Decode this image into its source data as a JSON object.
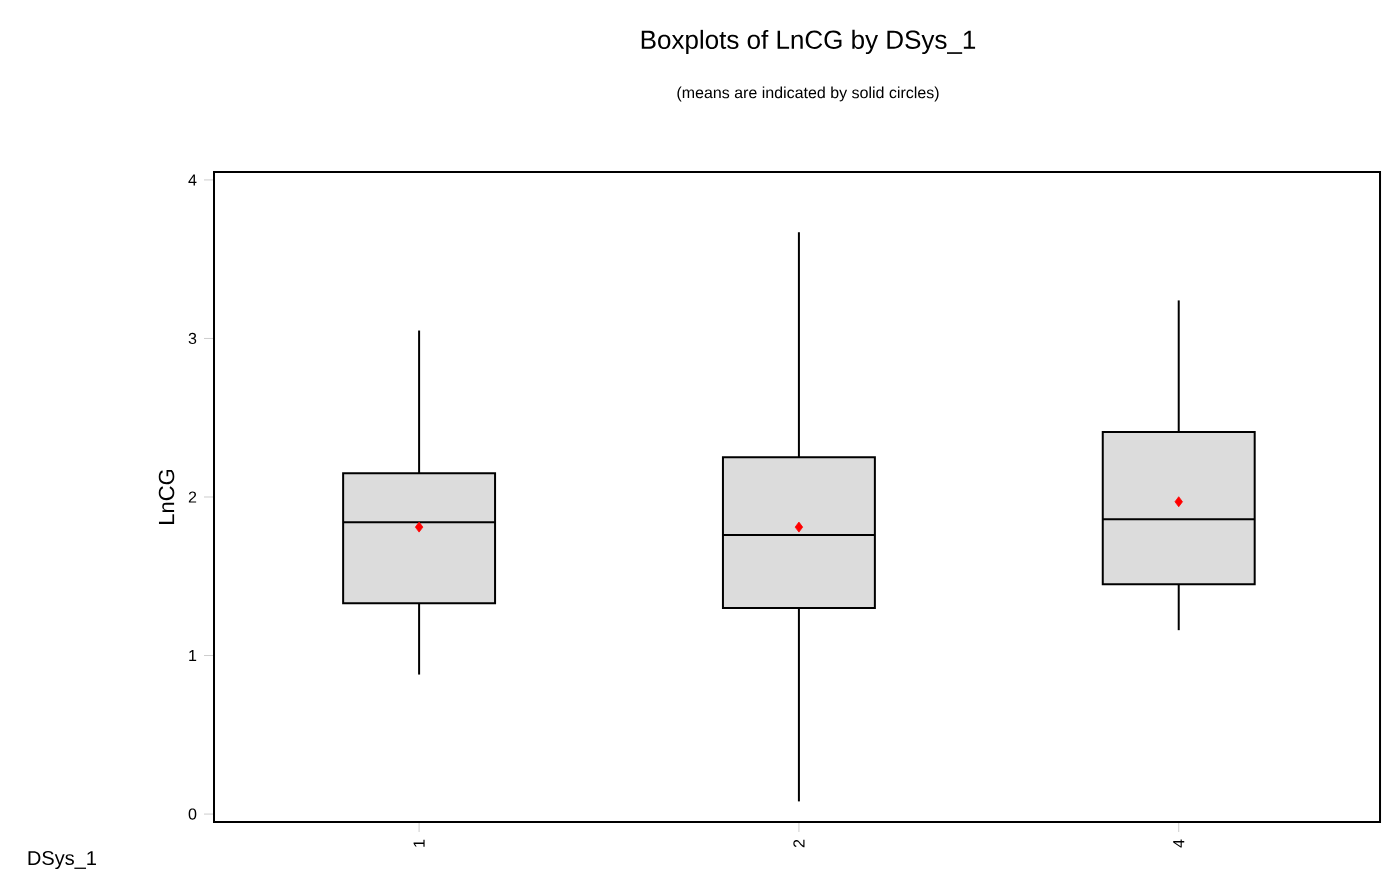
{
  "chart_data": {
    "type": "box",
    "title": "Boxplots of LnCG by DSys_1",
    "subtitle": "(means are indicated by solid circles)",
    "xlabel": "DSys_1",
    "ylabel": "LnCG",
    "categories": [
      "1",
      "2",
      "4"
    ],
    "color": "#dcdcdc",
    "marker": "diamond",
    "boxes": [
      {
        "low": 0.88,
        "q1": 1.33,
        "median": 1.84,
        "q3": 2.15,
        "high": 3.05,
        "mean": 1.81
      },
      {
        "low": 0.08,
        "q1": 1.3,
        "median": 1.76,
        "q3": 2.25,
        "high": 3.67,
        "mean": 1.81
      },
      {
        "low": 1.16,
        "q1": 1.45,
        "median": 1.86,
        "q3": 2.41,
        "high": 3.24,
        "mean": 1.97
      }
    ],
    "ylim": [
      -0.05,
      4.05
    ],
    "yticks": [
      0,
      1,
      2,
      3,
      4
    ],
    "grid": false
  }
}
